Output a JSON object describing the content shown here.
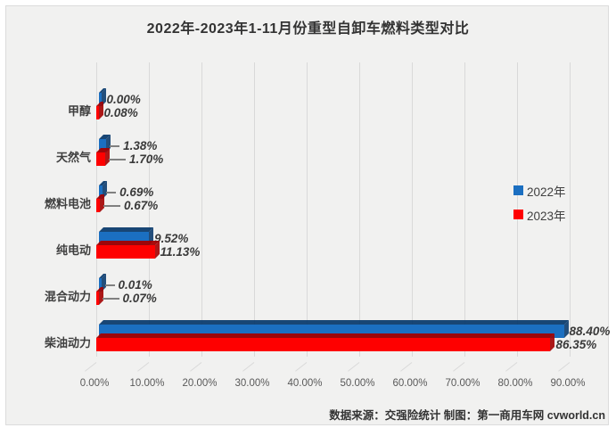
{
  "title": "2022年-2023年1-11月份重型自卸车燃料类型对比",
  "legend": {
    "items": [
      {
        "label": "2022年",
        "color": "#1b6fc1"
      },
      {
        "label": "2023年",
        "color": "#fe0000"
      }
    ]
  },
  "footer": "数据来源：交强险统计  制图：第一商用车网 cvworld.cn",
  "chart_data": {
    "type": "bar",
    "orientation": "horizontal",
    "style": "3d",
    "title": "2022年-2023年1-11月份重型自卸车燃料类型对比",
    "categories": [
      "甲醇",
      "天然气",
      "燃料电池",
      "纯电动",
      "混合动力",
      "柴油动力"
    ],
    "series": [
      {
        "name": "2022年",
        "color": "#1b6fc1",
        "dark_color": "#0c3c6e",
        "values": [
          0.0,
          1.38,
          0.69,
          9.52,
          0.01,
          88.4
        ],
        "labels": [
          "0.00%",
          "1.38%",
          "0.69%",
          "9.52%",
          "0.01%",
          "88.40%"
        ]
      },
      {
        "name": "2023年",
        "color": "#fe0000",
        "dark_color": "#a30000",
        "values": [
          0.08,
          1.7,
          0.67,
          11.13,
          0.07,
          86.35
        ],
        "labels": [
          "0.08%",
          "1.70%",
          "0.67%",
          "11.13%",
          "0.07%",
          "86.35%"
        ]
      }
    ],
    "leaders": [
      [
        false,
        true,
        true,
        false,
        true,
        false
      ],
      [
        false,
        true,
        true,
        false,
        true,
        false
      ]
    ],
    "x_ticks": [
      "0.00%",
      "10.00%",
      "20.00%",
      "30.00%",
      "40.00%",
      "50.00%",
      "60.00%",
      "70.00%",
      "80.00%",
      "90.00%"
    ],
    "xlim": [
      0,
      90
    ],
    "grid": true,
    "legend_position": "right"
  }
}
